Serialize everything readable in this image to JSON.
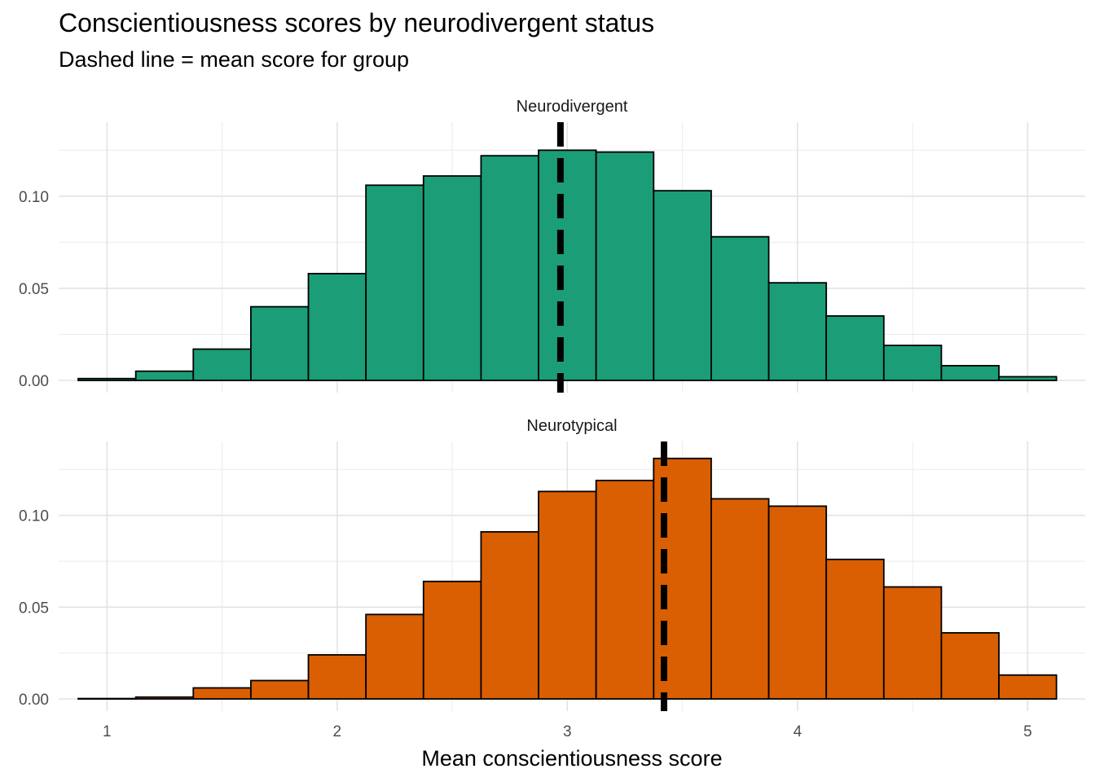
{
  "title": "Conscientiousness scores by neurodivergent status",
  "subtitle": "Dashed line = mean score for group",
  "chart_data": {
    "type": "bar",
    "subtype": "faceted-histogram",
    "xlabel": "Mean conscientiousness score",
    "ylabel": "",
    "xlim": [
      0.79,
      5.25
    ],
    "x_ticks": [
      1,
      2,
      3,
      4,
      5
    ],
    "x_tick_labels": [
      "1",
      "2",
      "3",
      "4",
      "5"
    ],
    "y_ticks": [
      0,
      0.05,
      0.1
    ],
    "y_tick_labels": [
      "0.00",
      "0.05",
      "0.10"
    ],
    "ylim": [
      0,
      0.138
    ],
    "grid": true,
    "legend": "none",
    "bin_edges": [
      0.875,
      1.125,
      1.375,
      1.625,
      1.875,
      2.125,
      2.375,
      2.625,
      2.875,
      3.125,
      3.375,
      3.625,
      3.875,
      4.125,
      4.375,
      4.625,
      4.875,
      5.125
    ],
    "facets": [
      {
        "name": "Neurodivergent",
        "fill": "#1B9E77",
        "values": [
          0.001,
          0.005,
          0.017,
          0.04,
          0.058,
          0.106,
          0.111,
          0.122,
          0.125,
          0.124,
          0.103,
          0.078,
          0.053,
          0.035,
          0.019,
          0.008,
          0.002
        ],
        "mean": 2.97
      },
      {
        "name": "Neurotypical",
        "fill": "#D95F02",
        "values": [
          0.0002,
          0.001,
          0.006,
          0.01,
          0.024,
          0.046,
          0.064,
          0.091,
          0.113,
          0.119,
          0.131,
          0.109,
          0.105,
          0.076,
          0.061,
          0.036,
          0.013
        ],
        "mean": 3.42
      }
    ]
  }
}
